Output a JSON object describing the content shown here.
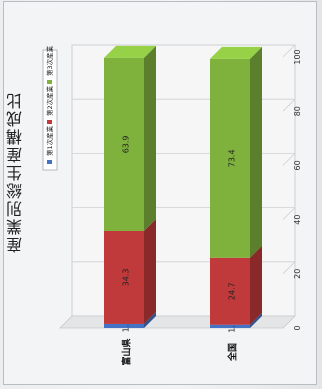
{
  "chart_data": {
    "type": "bar",
    "stacked": true,
    "orientation": "horizontal",
    "title": "産業別総生産構成比",
    "categories": [
      "富山県",
      "全国"
    ],
    "series": [
      {
        "name": "第1次産業",
        "values": [
          1.5,
          1.2
        ],
        "labels": [
          "1.5",
          "1.2"
        ],
        "color": "#4472c4"
      },
      {
        "name": "第2次産業",
        "values": [
          34.3,
          24.7
        ],
        "labels": [
          "34.3",
          "24.7"
        ],
        "color": "#c0393b"
      },
      {
        "name": "第3次産業",
        "values": [
          63.9,
          73.4
        ],
        "labels": [
          "63.9",
          "73.4"
        ],
        "color": "#7fb13d"
      }
    ],
    "xlim": [
      0,
      100
    ],
    "xticks": [
      "0",
      "20",
      "40",
      "60",
      "80",
      "100"
    ],
    "grid": true,
    "legend_position": "top"
  }
}
